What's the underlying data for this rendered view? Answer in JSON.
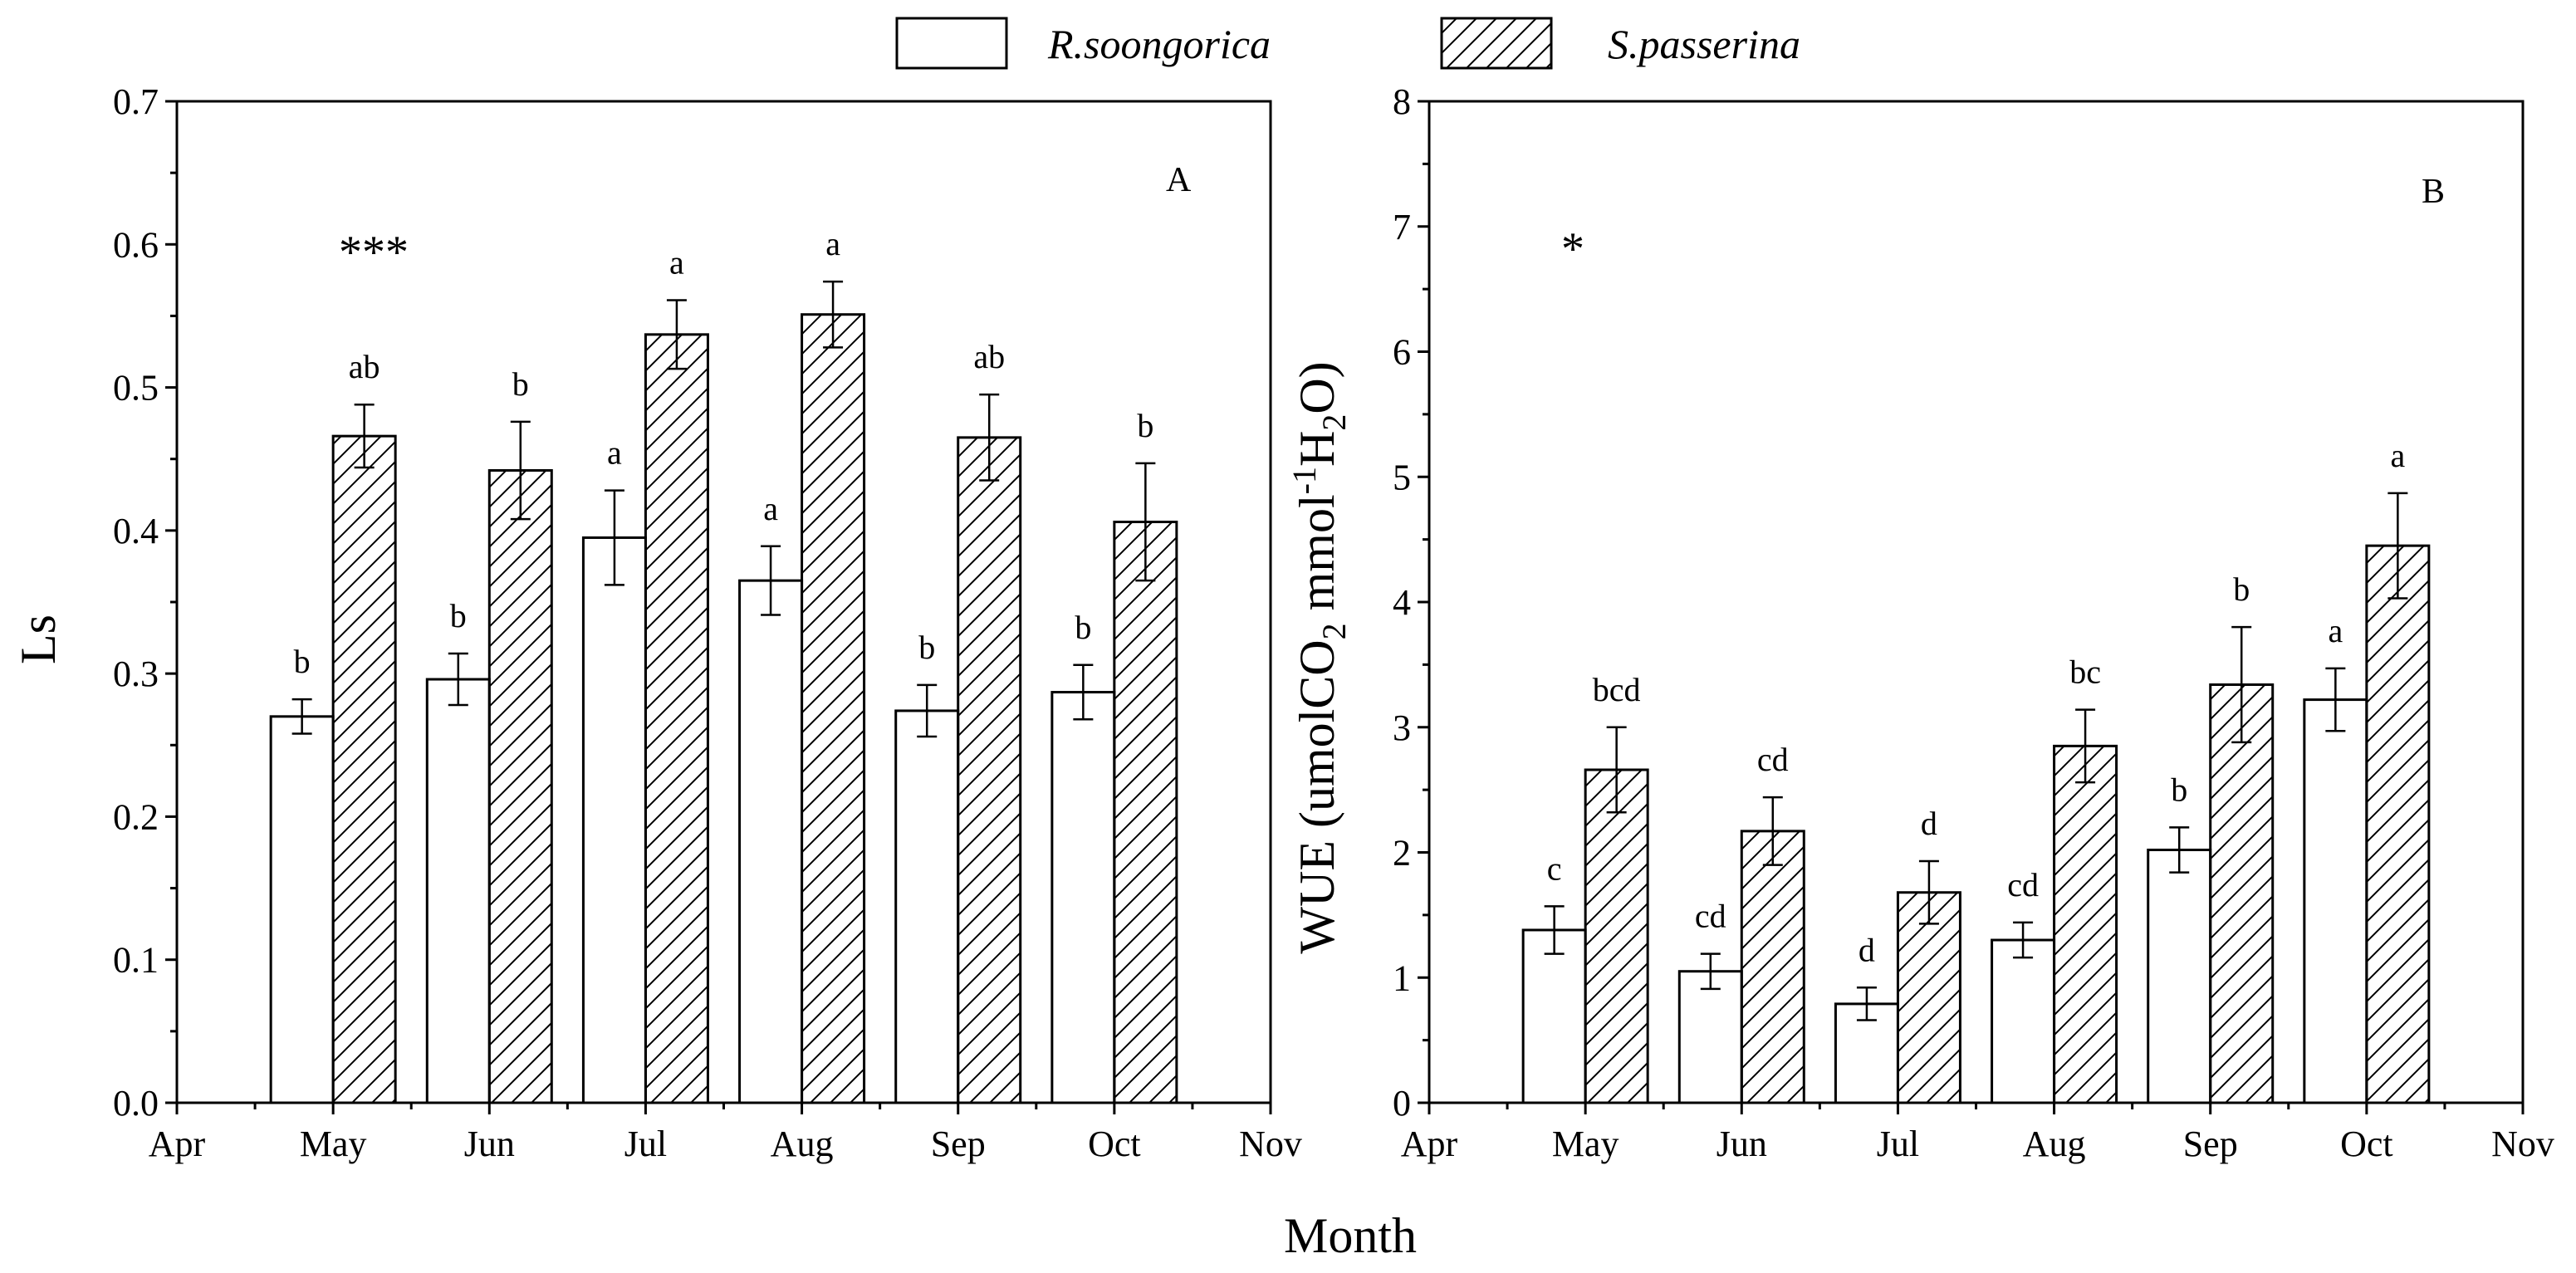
{
  "chart_data": {
    "type": "bar",
    "shared_xlabel": "Month",
    "legend": {
      "placement": "top-center",
      "entries": [
        {
          "name": "R.soongorica",
          "fill": "open"
        },
        {
          "name": "S.passerina",
          "fill": "hatched"
        }
      ]
    },
    "charts": [
      {
        "id": "A",
        "panel_label": "A",
        "ylabel": "Ls",
        "ylim": [
          0.0,
          0.7
        ],
        "yticks": [
          "0.0",
          "0.1",
          "0.2",
          "0.3",
          "0.4",
          "0.5",
          "0.6",
          "0.7"
        ],
        "x_tick_labels": [
          "Apr",
          "May",
          "Jun",
          "Jul",
          "Aug",
          "Sep",
          "Oct",
          "Nov"
        ],
        "categories": [
          "May",
          "Jun",
          "Jul",
          "Aug",
          "Sep",
          "Oct"
        ],
        "significance_marker": "***",
        "series": [
          {
            "name": "R.soongorica",
            "values": [
              0.27,
              0.296,
              0.395,
              0.365,
              0.274,
              0.287
            ],
            "errors": [
              0.012,
              0.018,
              0.033,
              0.024,
              0.018,
              0.019
            ],
            "letters": [
              "b",
              "b",
              "a",
              "a",
              "b",
              "b"
            ]
          },
          {
            "name": "S.passerina",
            "values": [
              0.466,
              0.442,
              0.537,
              0.551,
              0.465,
              0.406
            ],
            "errors": [
              0.022,
              0.034,
              0.024,
              0.023,
              0.03,
              0.041
            ],
            "letters": [
              "ab",
              "b",
              "a",
              "a",
              "ab",
              "b"
            ]
          }
        ]
      },
      {
        "id": "B",
        "panel_label": "B",
        "ylabel": "WUE (umolCO2 mmol-1H2O)",
        "ylabel_parts": {
          "a": "WUE (umolCO",
          "sub1": "2",
          "b": " mmol",
          "sup": "-1",
          "c": "H",
          "sub2": "2",
          "d": "O)"
        },
        "ylim": [
          0,
          8
        ],
        "yticks": [
          "0",
          "1",
          "2",
          "3",
          "4",
          "5",
          "6",
          "7",
          "8"
        ],
        "x_tick_labels": [
          "Apr",
          "May",
          "Jun",
          "Jul",
          "Aug",
          "Sep",
          "Oct",
          "Nov"
        ],
        "categories": [
          "May",
          "Jun",
          "Jul",
          "Aug",
          "Sep",
          "Oct"
        ],
        "significance_marker": "*",
        "series": [
          {
            "name": "R.soongorica",
            "values": [
              1.38,
              1.05,
              0.79,
              1.3,
              2.02,
              3.22
            ],
            "errors": [
              0.19,
              0.14,
              0.13,
              0.14,
              0.18,
              0.25
            ],
            "letters": [
              "c",
              "cd",
              "d",
              "cd",
              "b",
              "a"
            ]
          },
          {
            "name": "S.passerina",
            "values": [
              2.66,
              2.17,
              1.68,
              2.85,
              3.34,
              4.45
            ],
            "errors": [
              0.34,
              0.27,
              0.25,
              0.29,
              0.46,
              0.42
            ],
            "letters": [
              "bcd",
              "cd",
              "d",
              "bc",
              "b",
              "a"
            ]
          }
        ]
      }
    ]
  }
}
